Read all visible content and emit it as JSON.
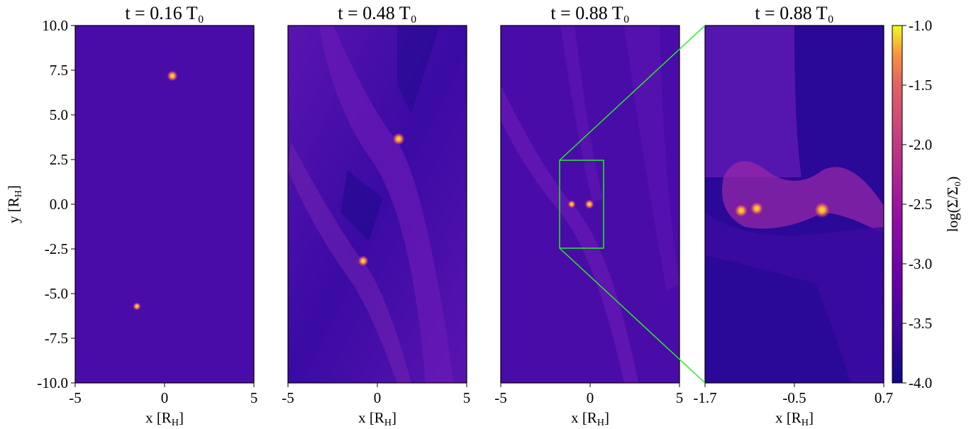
{
  "chart_data": {
    "type": "heatmap",
    "colormap": "plasma",
    "panels": [
      {
        "title": "t = 0.16 T₀",
        "xlim": [
          -5,
          5
        ],
        "ylim": [
          -10,
          10
        ],
        "xticks": [
          "-5",
          "0",
          "5"
        ],
        "xlabel": "x [R_H]",
        "yticks": [
          "10.0",
          "7.5",
          "5.0",
          "2.5",
          "0.0",
          "-2.5",
          "-5.0",
          "-7.5",
          "-10.0"
        ],
        "ylabel": "y [R_H]",
        "bright_spots": [
          {
            "x": 0.4,
            "y": 7.2
          },
          {
            "x": -1.6,
            "y": -5.7
          }
        ]
      },
      {
        "title": "t = 0.48 T₀",
        "xlim": [
          -5,
          5
        ],
        "ylim": [
          -10,
          10
        ],
        "xticks": [
          "-5",
          "0",
          "5"
        ],
        "xlabel": "x [R_H]",
        "bright_spots": [
          {
            "x": 1.2,
            "y": 3.6
          },
          {
            "x": -0.8,
            "y": -3.2
          }
        ]
      },
      {
        "title": "t = 0.88 T₀",
        "xlim": [
          -5,
          5
        ],
        "ylim": [
          -10,
          10
        ],
        "xticks": [
          "-5",
          "0",
          "5"
        ],
        "xlabel": "x [R_H]",
        "zoom_box": {
          "x": [
            -1.7,
            0.7
          ],
          "y": [
            -2.5,
            2.5
          ]
        },
        "bright_spots": [
          {
            "x": -1.0,
            "y": 0.0
          },
          {
            "x": 0.0,
            "y": 0.0
          }
        ]
      },
      {
        "title": "t = 0.88 T₀",
        "xlim": [
          -1.7,
          0.7
        ],
        "ylim": [
          -2.5,
          2.5
        ],
        "xticks": [
          "-1.7",
          "-0.5",
          "0.7"
        ],
        "xlabel": "x [R_H]",
        "bright_spots": [
          {
            "x": -1.25,
            "y": -0.1
          },
          {
            "x": -1.0,
            "y": -0.08
          },
          {
            "x": -0.28,
            "y": -0.12
          }
        ]
      }
    ],
    "colorbar": {
      "label": "log(Σ/Σ₀)",
      "range": [
        -4.0,
        -1.0
      ],
      "ticks": [
        "-1.0",
        "-1.5",
        "-2.0",
        "-2.5",
        "-3.0",
        "-3.5",
        "-4.0"
      ]
    }
  }
}
